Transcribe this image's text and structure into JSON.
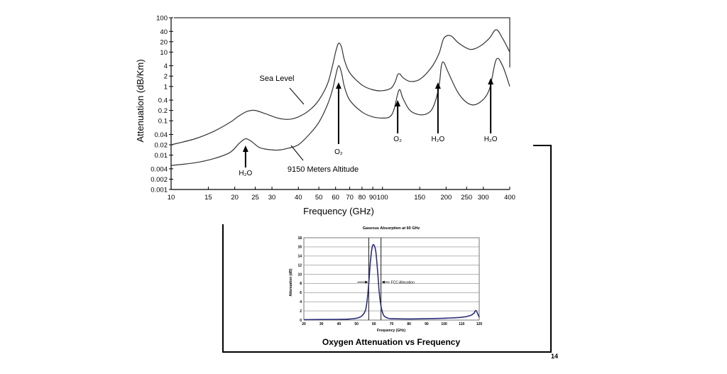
{
  "slide": {
    "page_number": "14"
  },
  "chart_data": [
    {
      "type": "line",
      "title": "",
      "xlabel": "Frequency (GHz)",
      "ylabel": "Attenuation (dB/Km)",
      "xscale": "log",
      "yscale": "log",
      "xlim": [
        10,
        400
      ],
      "ylim": [
        0.001,
        100
      ],
      "grid": false,
      "x_ticks": [
        "10",
        "15",
        "20",
        "25",
        "30",
        "40",
        "50",
        "60",
        "70",
        "80",
        "90",
        "100",
        "150",
        "200",
        "250",
        "300",
        "400"
      ],
      "y_ticks": [
        "100",
        "40",
        "20",
        "10",
        "4",
        "2",
        "1",
        "0.4",
        "0.2",
        "0.1",
        "0.04",
        "0.02",
        "0.01",
        "0.004",
        "0.002",
        "0.001"
      ],
      "series": [
        {
          "name": "Sea Level",
          "x": [
            10,
            13,
            16,
            19,
            21,
            23,
            25,
            28,
            32,
            36,
            40,
            45,
            50,
            55,
            58,
            60,
            62,
            64,
            66,
            70,
            80,
            90,
            100,
            110,
            115,
            118,
            121,
            125,
            135,
            150,
            170,
            185,
            195,
            210,
            230,
            260,
            290,
            320,
            345,
            370,
            400
          ],
          "y": [
            0.02,
            0.03,
            0.05,
            0.09,
            0.14,
            0.19,
            0.2,
            0.16,
            0.12,
            0.11,
            0.13,
            0.2,
            0.4,
            1.2,
            4,
            10,
            18,
            14,
            6,
            2.5,
            1.1,
            0.8,
            0.75,
            0.9,
            1.4,
            2.2,
            2.3,
            1.8,
            1.4,
            1.6,
            3.5,
            9,
            25,
            30,
            18,
            12,
            15,
            25,
            45,
            25,
            10
          ]
        },
        {
          "name": "9150 Meters Altitude",
          "x": [
            10,
            13,
            16,
            19,
            21,
            22.5,
            24,
            26,
            28,
            32,
            36,
            40,
            45,
            50,
            55,
            58,
            60,
            62,
            64,
            66,
            70,
            80,
            90,
            100,
            108,
            113,
            118,
            121,
            125,
            135,
            150,
            165,
            175,
            185,
            190,
            195,
            205,
            230,
            260,
            290,
            320,
            345,
            370,
            400
          ],
          "y": [
            0.005,
            0.006,
            0.008,
            0.012,
            0.022,
            0.03,
            0.025,
            0.017,
            0.015,
            0.014,
            0.016,
            0.02,
            0.04,
            0.09,
            0.3,
            0.8,
            2,
            4,
            2.5,
            1,
            0.4,
            0.18,
            0.13,
            0.12,
            0.13,
            0.2,
            0.6,
            0.8,
            0.45,
            0.2,
            0.15,
            0.17,
            0.28,
            1,
            4,
            5,
            2.5,
            0.6,
            0.3,
            0.35,
            0.8,
            6,
            4,
            1
          ]
        }
      ],
      "annotations": [
        {
          "label": "Sea Level",
          "points_to": "Sea Level"
        },
        {
          "label": "9150 Meters Altitude",
          "points_to": "9150 Meters Altitude"
        },
        {
          "label": "H₂O",
          "x": 22.5
        },
        {
          "label": "O₂",
          "x": 62
        },
        {
          "label": "O₂",
          "x": 118
        },
        {
          "label": "H₂O",
          "x": 183
        },
        {
          "label": "H₂O",
          "x": 325
        }
      ]
    },
    {
      "type": "line",
      "title": "Gaseous Absorption at 60 GHz",
      "subtitle": "Oxygen Attenuation vs Frequency",
      "xlabel": "Frequency (GHz)",
      "ylabel": "Attenuation (dB)",
      "xlim": [
        20,
        120
      ],
      "ylim": [
        0,
        18
      ],
      "grid": true,
      "x_ticks": [
        "20",
        "30",
        "40",
        "50",
        "60",
        "70",
        "80",
        "90",
        "100",
        "110",
        "120"
      ],
      "y_ticks": [
        "18",
        "16",
        "14",
        "12",
        "10",
        "8",
        "6",
        "4",
        "2",
        "0"
      ],
      "allocation_lines": [
        57,
        64
      ],
      "annotation": "FCC Allocation",
      "series": [
        {
          "name": "",
          "x": [
            20,
            30,
            40,
            45,
            50,
            53,
            55,
            56,
            57,
            58,
            59,
            60,
            61,
            62,
            63,
            64,
            65,
            66,
            68,
            70,
            80,
            90,
            100,
            110,
            115,
            117,
            118,
            119,
            120
          ],
          "y": [
            0.1,
            0.12,
            0.15,
            0.2,
            0.4,
            0.9,
            2,
            4,
            8,
            13,
            16,
            16.4,
            15,
            11,
            6,
            3,
            1.5,
            0.8,
            0.4,
            0.3,
            0.25,
            0.3,
            0.4,
            0.6,
            1,
            1.5,
            2.1,
            1.5,
            0.6
          ]
        }
      ]
    }
  ]
}
